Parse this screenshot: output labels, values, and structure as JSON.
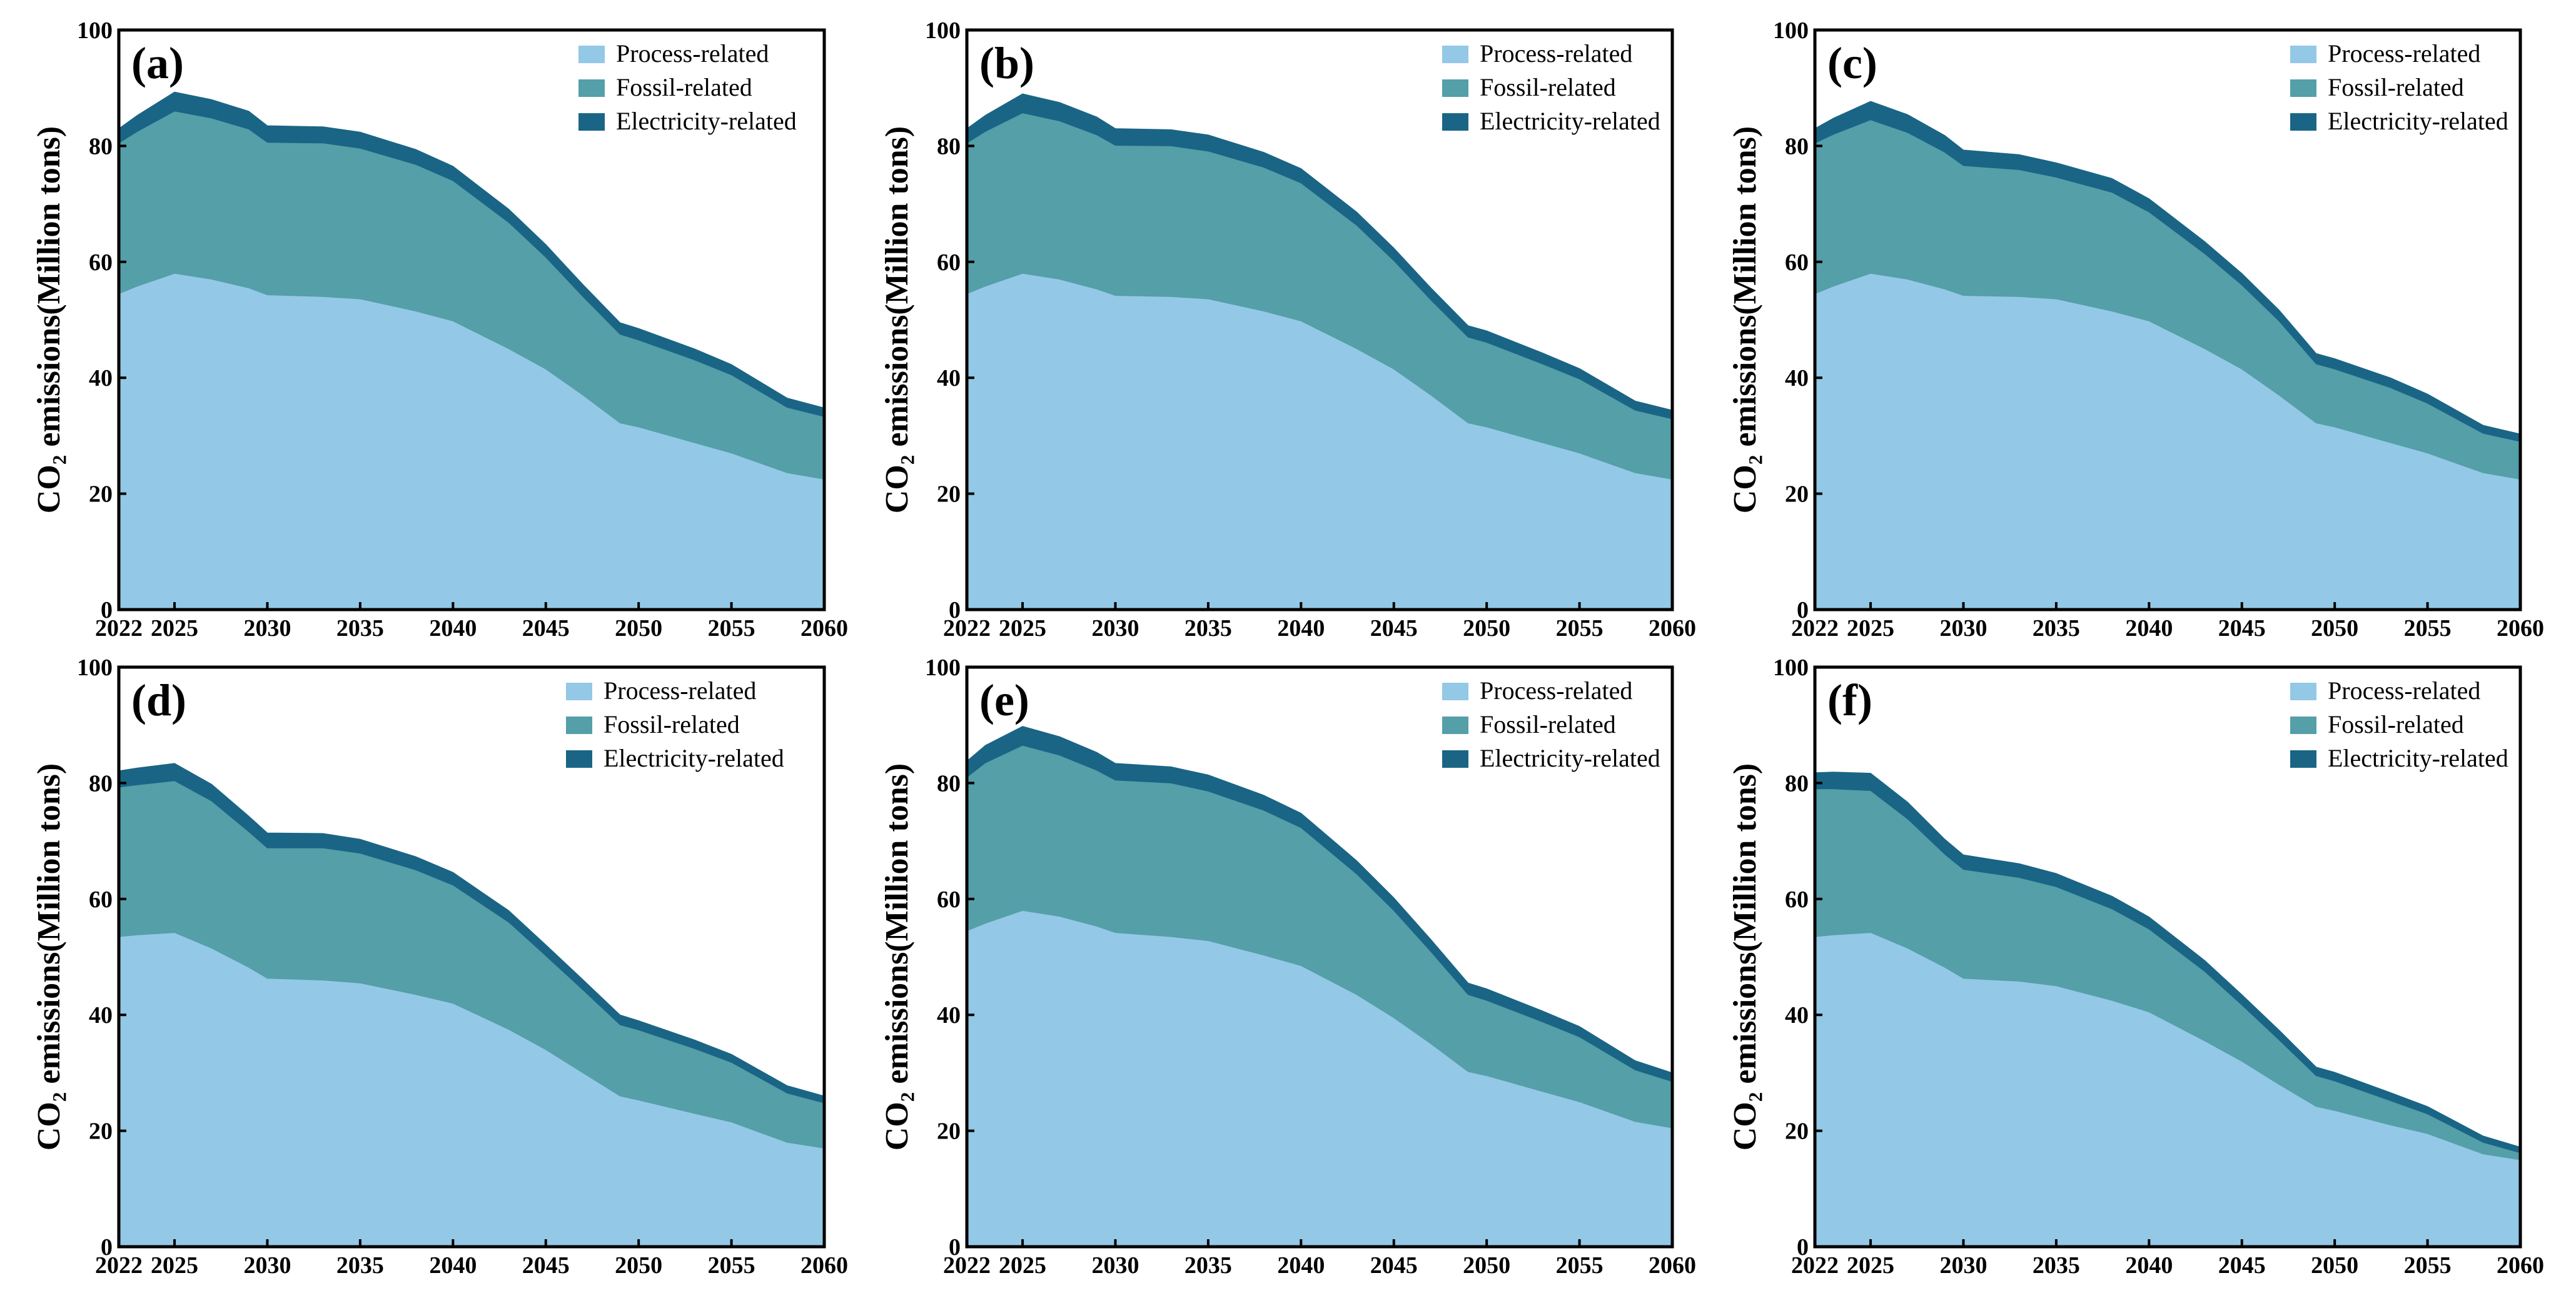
{
  "figure": {
    "colors": {
      "process": "#93c8e6",
      "fossil": "#549fa8",
      "electricity": "#1a6585",
      "axis": "#000000"
    }
  },
  "chart_data": [
    {
      "type": "area",
      "stacked": true,
      "panel_label": "(a)",
      "ylabel": "CO₂ emissions(Million tons)",
      "ylim": [
        0,
        100
      ],
      "yticks": [
        0,
        20,
        40,
        60,
        80,
        100
      ],
      "xlim": [
        2022,
        2060
      ],
      "xticks": [
        2022,
        2025,
        2030,
        2035,
        2040,
        2045,
        2050,
        2055,
        2060
      ],
      "legend_position": "top-right",
      "x": [
        2022,
        2023,
        2025,
        2027,
        2029,
        2030,
        2033,
        2035,
        2038,
        2040,
        2043,
        2045,
        2047,
        2049,
        2050,
        2053,
        2055,
        2058,
        2060
      ],
      "series": [
        {
          "name": "Process-related",
          "values": [
            54.5,
            55.8,
            58,
            57,
            55.5,
            54.3,
            54,
            53.6,
            51.5,
            49.8,
            45,
            41.5,
            37,
            32.2,
            31.5,
            28.8,
            27,
            23.6,
            22.5
          ]
        },
        {
          "name": "Fossil-related",
          "values": [
            26,
            26.7,
            28,
            27.8,
            27.4,
            26.3,
            26.5,
            26,
            25.3,
            24.2,
            21.8,
            19.3,
            17,
            15.3,
            15,
            14.3,
            13.5,
            11.3,
            10.8
          ]
        },
        {
          "name": "Electricity-related",
          "values": [
            2.5,
            2.8,
            3.3,
            3.2,
            3.1,
            2.9,
            2.8,
            2.8,
            2.6,
            2.5,
            2.3,
            2.2,
            2.1,
            2,
            2,
            1.9,
            1.8,
            1.6,
            1.5
          ]
        }
      ]
    },
    {
      "type": "area",
      "stacked": true,
      "panel_label": "(b)",
      "ylabel": "CO₂ emissions(Million tons)",
      "ylim": [
        0,
        100
      ],
      "yticks": [
        0,
        20,
        40,
        60,
        80,
        100
      ],
      "xlim": [
        2022,
        2060
      ],
      "xticks": [
        2022,
        2025,
        2030,
        2035,
        2040,
        2045,
        2050,
        2055,
        2060
      ],
      "legend_position": "top-right",
      "x": [
        2022,
        2023,
        2025,
        2027,
        2029,
        2030,
        2033,
        2035,
        2038,
        2040,
        2043,
        2045,
        2047,
        2049,
        2050,
        2053,
        2055,
        2058,
        2060
      ],
      "series": [
        {
          "name": "Process-related",
          "values": [
            54.5,
            55.8,
            58,
            57,
            55.3,
            54.2,
            54,
            53.6,
            51.5,
            49.8,
            45,
            41.5,
            37,
            32.2,
            31.5,
            28.8,
            27,
            23.6,
            22.5
          ]
        },
        {
          "name": "Fossil-related",
          "values": [
            26,
            26.7,
            27.7,
            27.3,
            26.6,
            25.9,
            26,
            25.5,
            24.8,
            23.8,
            21.3,
            18.7,
            16.4,
            14.8,
            14.6,
            13.6,
            12.8,
            10.8,
            10.4
          ]
        },
        {
          "name": "Electricity-related",
          "values": [
            2.5,
            2.8,
            3.3,
            3.2,
            3.1,
            2.9,
            2.8,
            2.8,
            2.6,
            2.5,
            2.3,
            2.2,
            2.1,
            2,
            2,
            1.9,
            1.8,
            1.6,
            1.5
          ]
        }
      ]
    },
    {
      "type": "area",
      "stacked": true,
      "panel_label": "(c)",
      "ylabel": "CO₂ emissions(Million tons)",
      "ylim": [
        0,
        100
      ],
      "yticks": [
        0,
        20,
        40,
        60,
        80,
        100
      ],
      "xlim": [
        2022,
        2060
      ],
      "xticks": [
        2022,
        2025,
        2030,
        2035,
        2040,
        2045,
        2050,
        2055,
        2060
      ],
      "legend_position": "top-right",
      "x": [
        2022,
        2023,
        2025,
        2027,
        2029,
        2030,
        2033,
        2035,
        2038,
        2040,
        2043,
        2045,
        2047,
        2049,
        2050,
        2053,
        2055,
        2058,
        2060
      ],
      "series": [
        {
          "name": "Process-related",
          "values": [
            54.5,
            55.8,
            58,
            57,
            55.3,
            54.2,
            54,
            53.6,
            51.5,
            49.8,
            45,
            41.5,
            37,
            32.2,
            31.5,
            28.8,
            27,
            23.6,
            22.5
          ]
        },
        {
          "name": "Fossil-related",
          "values": [
            26,
            26.2,
            26.5,
            25.3,
            23.6,
            22.4,
            21.9,
            21,
            20.5,
            18.8,
            16.4,
            14.5,
            12.8,
            10.2,
            10,
            9.5,
            8.6,
            6.8,
            6.5
          ]
        },
        {
          "name": "Electricity-related",
          "values": [
            2.5,
            2.8,
            3.2,
            3.1,
            2.9,
            2.7,
            2.6,
            2.5,
            2.4,
            2.3,
            2.1,
            2,
            1.9,
            1.8,
            1.8,
            1.7,
            1.6,
            1.4,
            1.3
          ]
        }
      ]
    },
    {
      "type": "area",
      "stacked": true,
      "panel_label": "(d)",
      "ylabel": "CO₂ emissions(Million tons)",
      "ylim": [
        0,
        100
      ],
      "yticks": [
        0,
        20,
        40,
        60,
        80,
        100
      ],
      "xlim": [
        2022,
        2060
      ],
      "xticks": [
        2022,
        2025,
        2030,
        2035,
        2040,
        2045,
        2050,
        2055,
        2060
      ],
      "legend_position": "top-right",
      "x": [
        2022,
        2023,
        2025,
        2027,
        2029,
        2030,
        2033,
        2035,
        2038,
        2040,
        2043,
        2045,
        2047,
        2049,
        2050,
        2053,
        2055,
        2058,
        2060
      ],
      "series": [
        {
          "name": "Process-related",
          "values": [
            53.5,
            53.8,
            54.2,
            51.5,
            48.2,
            46.3,
            46,
            45.5,
            43.5,
            42,
            37.5,
            34,
            30,
            26,
            25.3,
            23,
            21.5,
            18,
            17
          ]
        },
        {
          "name": "Fossil-related",
          "values": [
            25.8,
            25.9,
            26.2,
            25.4,
            23.4,
            22.5,
            22.8,
            22.4,
            21.5,
            20.4,
            18.5,
            16.2,
            14.3,
            12.3,
            12.1,
            11.2,
            10.3,
            8.5,
            7.8
          ]
        },
        {
          "name": "Electricity-related",
          "values": [
            2.8,
            2.9,
            3,
            2.9,
            2.7,
            2.6,
            2.5,
            2.4,
            2.3,
            2.2,
            2,
            1.9,
            1.8,
            1.7,
            1.6,
            1.5,
            1.4,
            1.3,
            1.2
          ]
        }
      ]
    },
    {
      "type": "area",
      "stacked": true,
      "panel_label": "(e)",
      "ylabel": "CO₂ emissions(Million tons)",
      "ylim": [
        0,
        100
      ],
      "yticks": [
        0,
        20,
        40,
        60,
        80,
        100
      ],
      "xlim": [
        2022,
        2060
      ],
      "xticks": [
        2022,
        2025,
        2030,
        2035,
        2040,
        2045,
        2050,
        2055,
        2060
      ],
      "legend_position": "top-right",
      "x": [
        2022,
        2023,
        2025,
        2027,
        2029,
        2030,
        2033,
        2035,
        2038,
        2040,
        2043,
        2045,
        2047,
        2049,
        2050,
        2053,
        2055,
        2058,
        2060
      ],
      "series": [
        {
          "name": "Process-related",
          "values": [
            54.5,
            55.8,
            58,
            57,
            55.3,
            54.2,
            53.5,
            52.8,
            50.3,
            48.5,
            43.5,
            39.5,
            35,
            30.2,
            29.5,
            26.8,
            25,
            21.6,
            20.5
          ]
        },
        {
          "name": "Fossil-related",
          "values": [
            26.5,
            27.7,
            28.5,
            27.8,
            26.9,
            26.3,
            26.5,
            25.8,
            25,
            23.8,
            20.8,
            18.5,
            15.9,
            13.3,
            13,
            12,
            11.2,
            8.9,
            8
          ]
        },
        {
          "name": "Electricity-related",
          "values": [
            2.8,
            3,
            3.3,
            3.2,
            3.1,
            2.9,
            2.8,
            2.8,
            2.6,
            2.5,
            2.3,
            2.2,
            2.1,
            2,
            2,
            1.9,
            1.8,
            1.6,
            1.5
          ]
        }
      ]
    },
    {
      "type": "area",
      "stacked": true,
      "panel_label": "(f)",
      "ylabel": "CO₂ emissions(Million tons)",
      "ylim": [
        0,
        100
      ],
      "yticks": [
        0,
        20,
        40,
        60,
        80,
        100
      ],
      "xlim": [
        2022,
        2060
      ],
      "xticks": [
        2022,
        2025,
        2030,
        2035,
        2040,
        2045,
        2050,
        2055,
        2060
      ],
      "legend_position": "top-right",
      "x": [
        2022,
        2023,
        2025,
        2027,
        2029,
        2030,
        2033,
        2035,
        2038,
        2040,
        2043,
        2045,
        2047,
        2049,
        2050,
        2053,
        2055,
        2058,
        2060
      ],
      "series": [
        {
          "name": "Process-related",
          "values": [
            53.5,
            53.8,
            54.2,
            51.5,
            48.2,
            46.3,
            45.8,
            45,
            42.5,
            40.5,
            35.5,
            32,
            28,
            24.2,
            23.5,
            21,
            19.5,
            16,
            15
          ]
        },
        {
          "name": "Fossil-related",
          "values": [
            25.5,
            25.2,
            24.5,
            22.3,
            19.5,
            18.8,
            17.9,
            17.1,
            15.8,
            14.3,
            12,
            9.7,
            7.7,
            5.3,
            5.1,
            4.2,
            3.4,
            2,
            1.2
          ]
        },
        {
          "name": "Electricity-related",
          "values": [
            2.8,
            2.9,
            3,
            2.9,
            2.6,
            2.5,
            2.4,
            2.3,
            2.2,
            2.1,
            1.9,
            1.8,
            1.7,
            1.5,
            1.5,
            1.4,
            1.3,
            1.1,
            1
          ]
        }
      ]
    }
  ]
}
